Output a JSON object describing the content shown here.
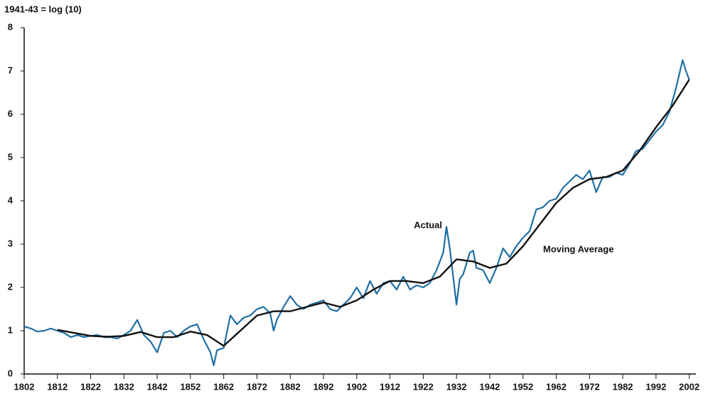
{
  "chart_data": {
    "type": "line",
    "ylabel": "1941-43 = log (10)",
    "xlim": [
      1802,
      2004
    ],
    "xticks": [
      1802,
      1812,
      1822,
      1832,
      1842,
      1852,
      1862,
      1872,
      1882,
      1892,
      1902,
      1912,
      1922,
      1932,
      1942,
      1952,
      1962,
      1972,
      1982,
      1992,
      2002
    ],
    "ylim": [
      0,
      8
    ],
    "yticks": [
      0,
      1,
      2,
      3,
      4,
      5,
      6,
      7,
      8
    ],
    "series": [
      {
        "name": "Actual",
        "color": "#1f6fa5",
        "x": [
          1802,
          1804,
          1806,
          1808,
          1810,
          1812,
          1814,
          1816,
          1818,
          1820,
          1822,
          1824,
          1826,
          1828,
          1830,
          1832,
          1834,
          1836,
          1838,
          1840,
          1842,
          1844,
          1846,
          1848,
          1850,
          1852,
          1854,
          1856,
          1858,
          1859,
          1860,
          1862,
          1864,
          1866,
          1868,
          1870,
          1872,
          1874,
          1876,
          1877,
          1878,
          1880,
          1882,
          1884,
          1886,
          1888,
          1890,
          1892,
          1894,
          1896,
          1898,
          1900,
          1902,
          1904,
          1906,
          1908,
          1910,
          1912,
          1914,
          1916,
          1918,
          1920,
          1922,
          1924,
          1926,
          1928,
          1929,
          1930,
          1932,
          1933,
          1934,
          1936,
          1937,
          1938,
          1940,
          1942,
          1944,
          1946,
          1948,
          1950,
          1952,
          1954,
          1956,
          1958,
          1960,
          1962,
          1964,
          1966,
          1968,
          1970,
          1972,
          1974,
          1976,
          1978,
          1980,
          1982,
          1984,
          1986,
          1988,
          1990,
          1992,
          1994,
          1996,
          1998,
          2000,
          2001,
          2002
        ],
        "values": [
          1.1,
          1.05,
          0.98,
          1.0,
          1.05,
          1.0,
          0.95,
          0.85,
          0.9,
          0.85,
          0.88,
          0.9,
          0.85,
          0.85,
          0.82,
          0.9,
          1.0,
          1.25,
          0.9,
          0.75,
          0.5,
          0.95,
          1.0,
          0.85,
          1.0,
          1.1,
          1.15,
          0.8,
          0.5,
          0.2,
          0.55,
          0.6,
          1.35,
          1.15,
          1.3,
          1.35,
          1.5,
          1.55,
          1.4,
          1.0,
          1.25,
          1.55,
          1.8,
          1.6,
          1.5,
          1.6,
          1.65,
          1.7,
          1.5,
          1.45,
          1.6,
          1.75,
          2.0,
          1.75,
          2.15,
          1.85,
          2.1,
          2.15,
          1.95,
          2.25,
          1.95,
          2.05,
          2.0,
          2.1,
          2.4,
          2.8,
          3.4,
          2.9,
          1.6,
          2.2,
          2.3,
          2.8,
          2.85,
          2.45,
          2.4,
          2.1,
          2.45,
          2.9,
          2.7,
          2.95,
          3.15,
          3.3,
          3.8,
          3.85,
          4.0,
          4.05,
          4.3,
          4.45,
          4.6,
          4.5,
          4.7,
          4.2,
          4.55,
          4.55,
          4.65,
          4.6,
          4.85,
          5.15,
          5.2,
          5.4,
          5.6,
          5.75,
          6.05,
          6.6,
          7.25,
          7.0,
          6.8
        ]
      },
      {
        "name": "Moving Average",
        "color": "#111111",
        "x": [
          1812,
          1817,
          1822,
          1827,
          1832,
          1837,
          1842,
          1847,
          1852,
          1857,
          1862,
          1867,
          1872,
          1877,
          1882,
          1887,
          1892,
          1897,
          1902,
          1907,
          1912,
          1917,
          1922,
          1927,
          1932,
          1937,
          1942,
          1947,
          1952,
          1957,
          1962,
          1967,
          1972,
          1977,
          1982,
          1987,
          1992,
          1997,
          2002
        ],
        "values": [
          1.02,
          0.95,
          0.88,
          0.86,
          0.88,
          0.97,
          0.85,
          0.85,
          0.98,
          0.9,
          0.65,
          1.0,
          1.35,
          1.45,
          1.45,
          1.55,
          1.65,
          1.55,
          1.7,
          1.95,
          2.15,
          2.15,
          2.1,
          2.25,
          2.65,
          2.6,
          2.45,
          2.55,
          2.95,
          3.45,
          3.95,
          4.3,
          4.5,
          4.55,
          4.7,
          5.15,
          5.7,
          6.2,
          6.8
        ]
      }
    ]
  }
}
